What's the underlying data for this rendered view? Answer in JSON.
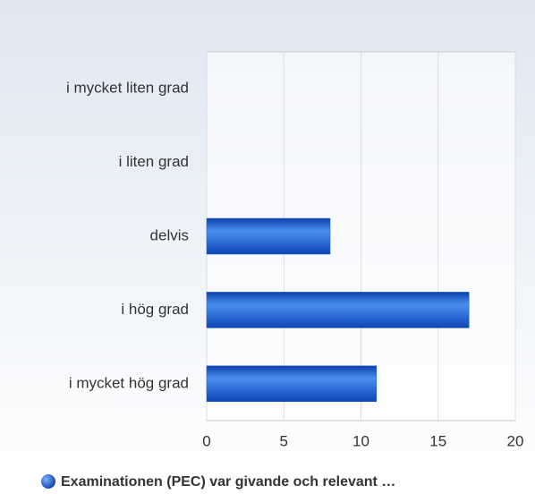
{
  "chart_data": {
    "type": "hbar",
    "categories": [
      "i mycket liten grad",
      "i liten grad",
      "delvis",
      "i hög grad",
      "i mycket hög grad"
    ],
    "series": [
      {
        "name": "Examinationen (PEC) var givande och relevant …",
        "color": "#1f5fd6",
        "values": [
          0,
          0,
          8,
          17,
          11
        ]
      }
    ],
    "xlim": [
      0,
      20
    ],
    "xticks": [
      0,
      5,
      10,
      15,
      20
    ],
    "grid": true,
    "legend": "bottom"
  }
}
